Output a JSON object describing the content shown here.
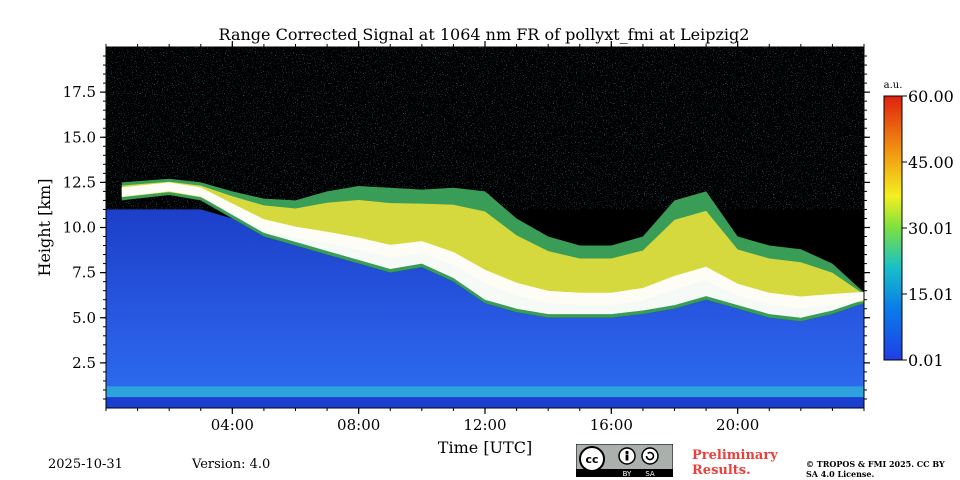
{
  "chart_data": {
    "type": "heatmap",
    "title": "Range Corrected Signal at 1064 nm FR of pollyxt_fmi at Leipzig2",
    "xlabel": "Time [UTC]",
    "ylabel": "Height [km]",
    "x_range_hours": [
      0,
      24
    ],
    "ylim": [
      0,
      20
    ],
    "x_ticks": [
      {
        "value": 4,
        "label": "04:00"
      },
      {
        "value": 8,
        "label": "08:00"
      },
      {
        "value": 12,
        "label": "12:00"
      },
      {
        "value": 16,
        "label": "16:00"
      },
      {
        "value": 20,
        "label": "20:00"
      }
    ],
    "y_ticks": [
      {
        "value": 2.5,
        "label": "2.5"
      },
      {
        "value": 5.0,
        "label": "5.0"
      },
      {
        "value": 7.5,
        "label": "7.5"
      },
      {
        "value": 10.0,
        "label": "10.0"
      },
      {
        "value": 12.5,
        "label": "12.5"
      },
      {
        "value": 15.0,
        "label": "15.0"
      },
      {
        "value": 17.5,
        "label": "17.5"
      }
    ],
    "colorbar": {
      "unit": "a.u.",
      "min": 0.01,
      "max": 60.0,
      "ticks": [
        {
          "value": 0.01,
          "label": "0.01"
        },
        {
          "value": 15.01,
          "label": "15.01"
        },
        {
          "value": 30.01,
          "label": "30.01"
        },
        {
          "value": 45.0,
          "label": "45.00"
        },
        {
          "value": 60.0,
          "label": "60.00"
        }
      ],
      "colors": [
        "#1f3ee6",
        "#0a7ee8",
        "#18c0c8",
        "#7be040",
        "#f4f020",
        "#f09010",
        "#e02010"
      ]
    },
    "layer_profile": {
      "description": "approximate cloud layer from time-height display",
      "time_hours": [
        0.5,
        2,
        3,
        4,
        5,
        6,
        7,
        8,
        9,
        10,
        11,
        12,
        13,
        14,
        15,
        16,
        17,
        18,
        19,
        20,
        21,
        22,
        23,
        24
      ],
      "cloud_top_km": [
        12.5,
        12.7,
        12.5,
        12.0,
        11.6,
        11.5,
        12.0,
        12.3,
        12.2,
        12.1,
        12.2,
        12.0,
        10.5,
        9.5,
        9.0,
        9.0,
        9.5,
        11.5,
        12.0,
        9.5,
        9.0,
        8.8,
        8.0,
        6.4
      ],
      "cloud_base_km": [
        11.5,
        11.8,
        11.5,
        10.5,
        9.5,
        9.0,
        8.5,
        8.0,
        7.5,
        7.8,
        7.0,
        5.8,
        5.3,
        5.0,
        5.0,
        5.0,
        5.2,
        5.5,
        6.0,
        5.5,
        5.0,
        4.8,
        5.2,
        5.8
      ]
    }
  },
  "footer": {
    "date": "2025-10-31",
    "version": "Version: 4.0",
    "preliminary": "Preliminary Results.",
    "copyright": "© TROPOS & FMI 2025. CC BY SA 4.0 License.",
    "license_badge": {
      "cc": "cc",
      "by": "BY",
      "sa": "SA"
    }
  },
  "colors": {
    "background_low": "#000000",
    "boundary_layer": "#2d6ce8",
    "strong_signal": "#ffffff",
    "preliminary_text": "#e8403a"
  }
}
